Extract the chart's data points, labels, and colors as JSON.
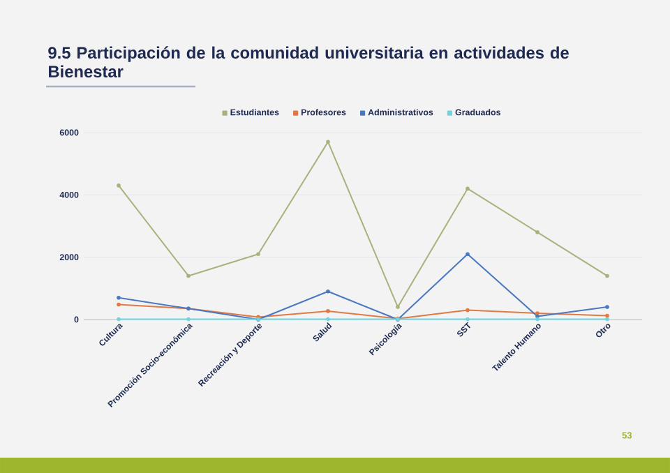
{
  "chart_data": {
    "type": "line",
    "title": "9.5 Participación de la comunidad universitaria en actividades de Bienestar",
    "categories": [
      "Cultura",
      "Promoción Socio-económica",
      "Recreación y Deporte",
      "Salud",
      "Psicología",
      "SST",
      "Talento Humano",
      "Otro"
    ],
    "series": [
      {
        "name": "Estudiantes",
        "color": "#a8b27c",
        "values": [
          4300,
          1400,
          2100,
          5700,
          400,
          4200,
          2800,
          1400
        ]
      },
      {
        "name": "Profesores",
        "color": "#e07a45",
        "values": [
          480,
          350,
          80,
          270,
          30,
          300,
          200,
          120
        ]
      },
      {
        "name": "Administrativos",
        "color": "#4a78c0",
        "values": [
          700,
          350,
          0,
          900,
          0,
          2100,
          100,
          400
        ]
      },
      {
        "name": "Graduados",
        "color": "#6fd6df",
        "values": [
          10,
          10,
          10,
          10,
          10,
          10,
          10,
          10
        ]
      }
    ],
    "ylim": [
      0,
      6000
    ],
    "yticks": [
      0,
      2000,
      4000,
      6000
    ],
    "grid": "y",
    "legend": "top",
    "marker": "circle",
    "annotations": [
      "53"
    ]
  }
}
